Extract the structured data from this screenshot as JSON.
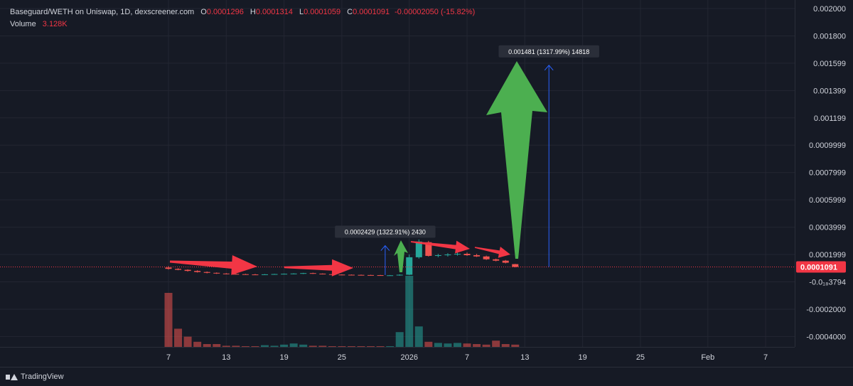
{
  "header": {
    "pair": "Baseguard/WETH on Uniswap, 1D, dexscreener.com",
    "o_label": "O",
    "o": "0.0001296",
    "h_label": "H",
    "h": "0.0001314",
    "l_label": "L",
    "l": "0.0001059",
    "c_label": "C",
    "c": "0.0001091",
    "change": "-0.00002050 (-15.82%)",
    "volume_label": "Volume",
    "volume": "3.128K"
  },
  "footer": {
    "brand": "TradingView"
  },
  "colors": {
    "up": "#26a69a",
    "down": "#ef5350",
    "background": "#161a25",
    "grid": "#232632",
    "arrow_red": "#f23645",
    "arrow_green": "#4caf50",
    "measure_blue": "#2962ff",
    "price_tag": "#f23645"
  },
  "chart_data": {
    "type": "candlestick",
    "y_axis_ticks": [
      "0.002000",
      "0.001800",
      "0.001599",
      "0.001399",
      "0.001199",
      "0.0009999",
      "0.0007999",
      "0.0005999",
      "0.0003999",
      "0.0001999",
      "-0.0₁₈3794",
      "-0.0002000",
      "-0.0004000"
    ],
    "y_axis_tick_values": [
      0.002,
      0.0018,
      0.0016,
      0.0014,
      0.0012,
      0.001,
      0.0008,
      0.0006,
      0.0004,
      0.0002,
      0.0,
      -0.0002,
      -0.0004
    ],
    "x_axis_ticks": [
      "7",
      "13",
      "19",
      "25",
      "2026",
      "7",
      "13",
      "19",
      "25",
      "Feb",
      "7"
    ],
    "x_axis_tick_days": [
      0,
      6,
      12,
      18,
      25,
      31,
      37,
      43,
      49,
      56,
      62
    ],
    "ylim": [
      -0.00045,
      0.002
    ],
    "last_price": "0.0001091",
    "last_price_value": 0.0001091,
    "candles": [
      {
        "d": 0,
        "o": 0.000105,
        "h": 0.000115,
        "l": 9e-05,
        "c": 9.5e-05
      },
      {
        "d": 1,
        "o": 9.5e-05,
        "h": 0.0001,
        "l": 8.5e-05,
        "c": 8.8e-05
      },
      {
        "d": 2,
        "o": 8.8e-05,
        "h": 9.2e-05,
        "l": 7.5e-05,
        "c": 8e-05
      },
      {
        "d": 3,
        "o": 8e-05,
        "h": 8.5e-05,
        "l": 6.8e-05,
        "c": 7.2e-05
      },
      {
        "d": 4,
        "o": 7.2e-05,
        "h": 7.6e-05,
        "l": 6.2e-05,
        "c": 6.6e-05
      },
      {
        "d": 5,
        "o": 6.6e-05,
        "h": 6.9e-05,
        "l": 5.8e-05,
        "c": 6.1e-05
      },
      {
        "d": 6,
        "o": 6.1e-05,
        "h": 6.4e-05,
        "l": 5.5e-05,
        "c": 5.8e-05
      },
      {
        "d": 7,
        "o": 5.8e-05,
        "h": 6.1e-05,
        "l": 5.3e-05,
        "c": 5.6e-05
      },
      {
        "d": 8,
        "o": 5.6e-05,
        "h": 5.9e-05,
        "l": 5.2e-05,
        "c": 5.4e-05
      },
      {
        "d": 9,
        "o": 5.4e-05,
        "h": 5.8e-05,
        "l": 5.1e-05,
        "c": 5.3e-05
      },
      {
        "d": 10,
        "o": 5.3e-05,
        "h": 5.7e-05,
        "l": 5e-05,
        "c": 5.5e-05
      },
      {
        "d": 11,
        "o": 5.5e-05,
        "h": 5.9e-05,
        "l": 5.2e-05,
        "c": 5.7e-05
      },
      {
        "d": 12,
        "o": 5.7e-05,
        "h": 6.1e-05,
        "l": 5.4e-05,
        "c": 5.9e-05
      },
      {
        "d": 13,
        "o": 5.9e-05,
        "h": 6.3e-05,
        "l": 5.5e-05,
        "c": 6.1e-05
      },
      {
        "d": 14,
        "o": 6.1e-05,
        "h": 6.6e-05,
        "l": 5.7e-05,
        "c": 6.4e-05
      },
      {
        "d": 15,
        "o": 6.4e-05,
        "h": 6.7e-05,
        "l": 5.8e-05,
        "c": 6e-05
      },
      {
        "d": 16,
        "o": 6e-05,
        "h": 6.2e-05,
        "l": 5.4e-05,
        "c": 5.6e-05
      },
      {
        "d": 17,
        "o": 5.6e-05,
        "h": 5.8e-05,
        "l": 5.1e-05,
        "c": 5.3e-05
      },
      {
        "d": 18,
        "o": 5.3e-05,
        "h": 5.5e-05,
        "l": 5e-05,
        "c": 5.2e-05
      },
      {
        "d": 19,
        "o": 5.2e-05,
        "h": 5.4e-05,
        "l": 4.9e-05,
        "c": 5.1e-05
      },
      {
        "d": 20,
        "o": 5.1e-05,
        "h": 5.3e-05,
        "l": 4.9e-05,
        "c": 5e-05
      },
      {
        "d": 21,
        "o": 5e-05,
        "h": 5.2e-05,
        "l": 4.8e-05,
        "c": 4.9e-05
      },
      {
        "d": 22,
        "o": 4.9e-05,
        "h": 5.1e-05,
        "l": 4.7e-05,
        "c": 4.8e-05
      },
      {
        "d": 23,
        "o": 4.8e-05,
        "h": 5e-05,
        "l": 4.7e-05,
        "c": 4.8e-05
      },
      {
        "d": 24,
        "o": 4.8e-05,
        "h": 5.5e-05,
        "l": 4.5e-05,
        "c": 5.2e-05
      },
      {
        "d": 25,
        "o": 5.2e-05,
        "h": 0.0002,
        "l": 5e-05,
        "c": 0.00018
      },
      {
        "d": 26,
        "o": 0.00018,
        "h": 0.00031,
        "l": 0.00017,
        "c": 0.000295
      },
      {
        "d": 27,
        "o": 0.00029,
        "h": 0.0003,
        "l": 0.000185,
        "c": 0.00019
      },
      {
        "d": 28,
        "o": 0.00019,
        "h": 0.000205,
        "l": 0.00018,
        "c": 0.000195
      },
      {
        "d": 29,
        "o": 0.000195,
        "h": 0.00021,
        "l": 0.000185,
        "c": 0.0002
      },
      {
        "d": 30,
        "o": 0.0002,
        "h": 0.000215,
        "l": 0.000192,
        "c": 0.000205
      },
      {
        "d": 31,
        "o": 0.000205,
        "h": 0.000215,
        "l": 0.00019,
        "c": 0.000195
      },
      {
        "d": 32,
        "o": 0.000195,
        "h": 0.000205,
        "l": 0.000182,
        "c": 0.000186
      },
      {
        "d": 33,
        "o": 0.000186,
        "h": 0.000192,
        "l": 0.00016,
        "c": 0.000165
      },
      {
        "d": 34,
        "o": 0.000165,
        "h": 0.00017,
        "l": 0.00015,
        "c": 0.000155
      },
      {
        "d": 35,
        "o": 0.000155,
        "h": 0.00016,
        "l": 0.000135,
        "c": 0.00014
      },
      {
        "d": 36,
        "o": 0.0001296,
        "h": 0.0001314,
        "l": 0.0001059,
        "c": 0.0001091
      }
    ],
    "volume": [
      {
        "d": 0,
        "v": 0.95
      },
      {
        "d": 1,
        "v": 0.32
      },
      {
        "d": 2,
        "v": 0.18
      },
      {
        "d": 3,
        "v": 0.09
      },
      {
        "d": 4,
        "v": 0.05
      },
      {
        "d": 5,
        "v": 0.05
      },
      {
        "d": 6,
        "v": 0.02
      },
      {
        "d": 7,
        "v": 0.02
      },
      {
        "d": 8,
        "v": 0.01
      },
      {
        "d": 9,
        "v": 0.01
      },
      {
        "d": 10,
        "v": 0.03
      },
      {
        "d": 11,
        "v": 0.02
      },
      {
        "d": 12,
        "v": 0.04
      },
      {
        "d": 13,
        "v": 0.06
      },
      {
        "d": 14,
        "v": 0.04
      },
      {
        "d": 15,
        "v": 0.02
      },
      {
        "d": 16,
        "v": 0.02
      },
      {
        "d": 17,
        "v": 0.01
      },
      {
        "d": 18,
        "v": 0.01
      },
      {
        "d": 19,
        "v": 0.01
      },
      {
        "d": 20,
        "v": 0.01
      },
      {
        "d": 21,
        "v": 0.01
      },
      {
        "d": 22,
        "v": 0.01
      },
      {
        "d": 23,
        "v": 0.01
      },
      {
        "d": 24,
        "v": 0.26
      },
      {
        "d": 25,
        "v": 1.25
      },
      {
        "d": 26,
        "v": 0.36
      },
      {
        "d": 27,
        "v": 0.09
      },
      {
        "d": 28,
        "v": 0.07
      },
      {
        "d": 29,
        "v": 0.06
      },
      {
        "d": 30,
        "v": 0.07
      },
      {
        "d": 31,
        "v": 0.06
      },
      {
        "d": 32,
        "v": 0.05
      },
      {
        "d": 33,
        "v": 0.04
      },
      {
        "d": 34,
        "v": 0.11
      },
      {
        "d": 35,
        "v": 0.05
      },
      {
        "d": 36,
        "v": 0.04
      }
    ],
    "annotations": [
      {
        "label": "0.0002429 (1322.91%) 2430",
        "from_day": 22.5,
        "to_price": 0.000265,
        "base_price": 4.99e-05
      },
      {
        "label": "0.001481 (1317.99%) 14818",
        "from_day": 39.5,
        "to_price": 0.001585,
        "base_price": 0.000109
      }
    ]
  }
}
